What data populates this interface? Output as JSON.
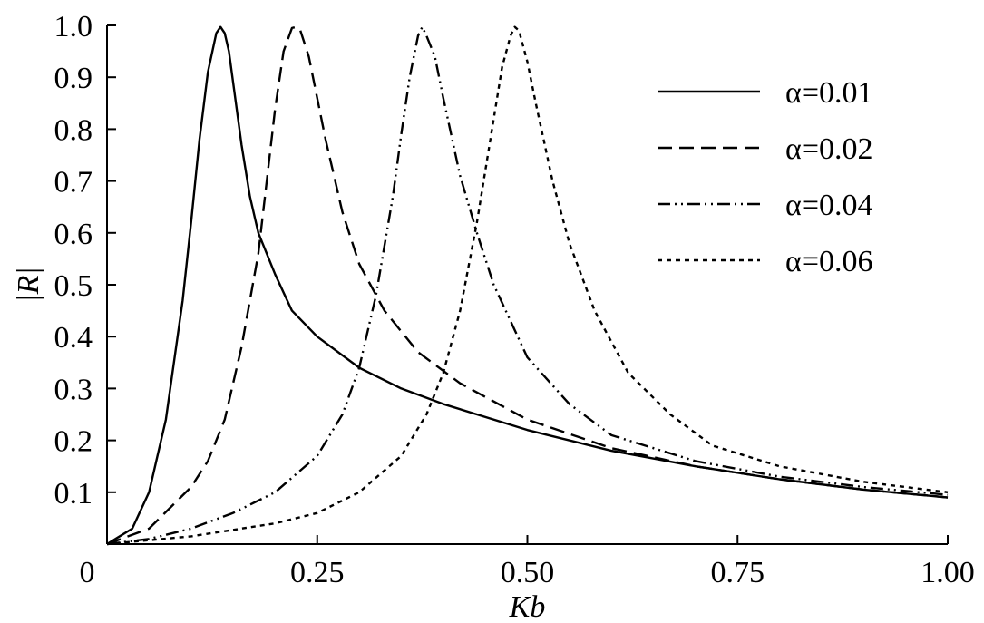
{
  "chart_data": {
    "type": "line",
    "xlabel": "Kb",
    "ylabel": "|R|",
    "xlim": [
      0,
      1.0
    ],
    "ylim": [
      0,
      1.0
    ],
    "x_ticks": [
      0,
      0.25,
      0.5,
      0.75,
      1.0
    ],
    "x_tick_labels": [
      "0",
      "0.25",
      "0.50",
      "0.75",
      "1.00"
    ],
    "y_ticks": [
      0.1,
      0.2,
      0.3,
      0.4,
      0.5,
      0.6,
      0.7,
      0.8,
      0.9,
      1.0
    ],
    "y_tick_labels": [
      "0.1",
      "0.2",
      "0.3",
      "0.4",
      "0.5",
      "0.6",
      "0.7",
      "0.8",
      "0.9",
      "1.0"
    ],
    "grid": false,
    "legend_position": "top-right",
    "series": [
      {
        "name": "α=0.01",
        "style": "solid",
        "x": [
          0.0,
          0.03,
          0.05,
          0.07,
          0.09,
          0.1,
          0.11,
          0.12,
          0.13,
          0.135,
          0.14,
          0.145,
          0.15,
          0.16,
          0.17,
          0.18,
          0.2,
          0.22,
          0.25,
          0.3,
          0.35,
          0.4,
          0.5,
          0.6,
          0.7,
          0.8,
          0.9,
          1.0
        ],
        "values": [
          0.0,
          0.03,
          0.1,
          0.24,
          0.47,
          0.62,
          0.78,
          0.91,
          0.985,
          0.997,
          0.985,
          0.95,
          0.89,
          0.77,
          0.67,
          0.6,
          0.52,
          0.45,
          0.4,
          0.34,
          0.3,
          0.27,
          0.22,
          0.18,
          0.15,
          0.125,
          0.105,
          0.09
        ]
      },
      {
        "name": "α=0.02",
        "style": "dashed",
        "x": [
          0.0,
          0.05,
          0.1,
          0.12,
          0.14,
          0.16,
          0.18,
          0.19,
          0.2,
          0.21,
          0.22,
          0.225,
          0.23,
          0.24,
          0.25,
          0.26,
          0.28,
          0.3,
          0.33,
          0.37,
          0.42,
          0.5,
          0.6,
          0.7,
          0.8,
          0.9,
          1.0
        ],
        "values": [
          0.0,
          0.03,
          0.11,
          0.16,
          0.24,
          0.38,
          0.56,
          0.7,
          0.84,
          0.95,
          0.995,
          0.997,
          0.99,
          0.94,
          0.86,
          0.78,
          0.64,
          0.54,
          0.45,
          0.37,
          0.31,
          0.24,
          0.185,
          0.15,
          0.125,
          0.105,
          0.09
        ]
      },
      {
        "name": "α=0.04",
        "style": "dash-dot-dot",
        "x": [
          0.0,
          0.05,
          0.1,
          0.15,
          0.2,
          0.25,
          0.28,
          0.3,
          0.32,
          0.34,
          0.35,
          0.36,
          0.37,
          0.375,
          0.38,
          0.39,
          0.4,
          0.42,
          0.44,
          0.46,
          0.5,
          0.55,
          0.6,
          0.7,
          0.8,
          0.9,
          1.0
        ],
        "values": [
          0.0,
          0.01,
          0.03,
          0.06,
          0.1,
          0.17,
          0.25,
          0.34,
          0.48,
          0.67,
          0.79,
          0.9,
          0.98,
          0.997,
          0.98,
          0.94,
          0.86,
          0.71,
          0.6,
          0.5,
          0.36,
          0.27,
          0.21,
          0.16,
          0.13,
          0.11,
          0.095
        ]
      },
      {
        "name": "α=0.06",
        "style": "dotted",
        "x": [
          0.0,
          0.1,
          0.2,
          0.25,
          0.3,
          0.35,
          0.38,
          0.4,
          0.42,
          0.44,
          0.46,
          0.47,
          0.48,
          0.485,
          0.49,
          0.5,
          0.51,
          0.53,
          0.55,
          0.58,
          0.62,
          0.67,
          0.72,
          0.8,
          0.9,
          1.0
        ],
        "values": [
          0.0,
          0.015,
          0.04,
          0.06,
          0.1,
          0.17,
          0.25,
          0.33,
          0.45,
          0.62,
          0.82,
          0.92,
          0.98,
          0.997,
          0.99,
          0.93,
          0.85,
          0.7,
          0.58,
          0.45,
          0.33,
          0.25,
          0.19,
          0.15,
          0.12,
          0.1
        ]
      }
    ]
  }
}
